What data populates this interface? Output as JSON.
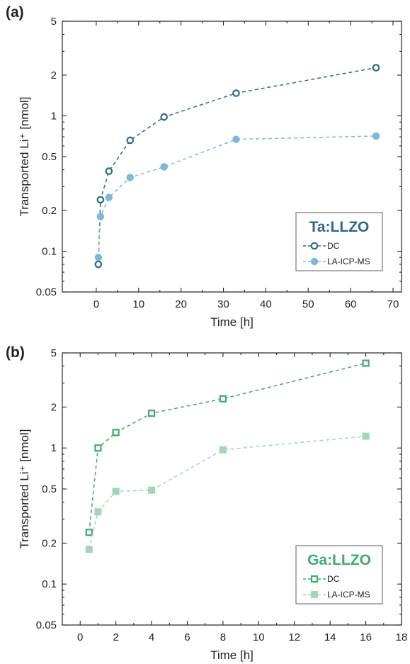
{
  "chart_data": [
    {
      "type": "scatter",
      "panel_label": "(a)",
      "xlabel": "Time [h]",
      "ylabel": "Transported Li⁺ [nmol]",
      "xlim": [
        -8,
        72
      ],
      "ylim": [
        0.05,
        5
      ],
      "yscale": "log",
      "x_ticks": [
        0,
        10,
        20,
        30,
        40,
        50,
        60,
        70
      ],
      "y_ticks": [
        0.05,
        0.1,
        0.2,
        0.5,
        1,
        2,
        5
      ],
      "legend_title": "Ta:LLZO",
      "legend_title_color": "#2e6a8a",
      "legend_placement": "lower-right",
      "series": [
        {
          "name": "DC",
          "color": "#2e6a8a",
          "marker": "open-circle",
          "x": [
            0.5,
            1,
            3,
            8,
            16,
            33,
            66
          ],
          "y": [
            0.08,
            0.24,
            0.39,
            0.66,
            0.98,
            1.47,
            2.27
          ]
        },
        {
          "name": "LA-ICP-MS",
          "color": "#7ab8dd",
          "marker": "filled-circle",
          "x": [
            0.5,
            1,
            3,
            8,
            16,
            33,
            66
          ],
          "y": [
            0.09,
            0.18,
            0.25,
            0.35,
            0.42,
            0.67,
            0.71
          ]
        }
      ]
    },
    {
      "type": "scatter",
      "panel_label": "(b)",
      "xlabel": "Time [h]",
      "ylabel": "Transported Li⁺ [nmol]",
      "xlim": [
        -1,
        18
      ],
      "ylim": [
        0.05,
        5
      ],
      "yscale": "log",
      "x_ticks": [
        0,
        2,
        4,
        6,
        8,
        10,
        12,
        14,
        16,
        18
      ],
      "y_ticks": [
        0.05,
        0.1,
        0.2,
        0.5,
        1,
        2,
        5
      ],
      "legend_title": "Ga:LLZO",
      "legend_title_color": "#3aae6a",
      "legend_placement": "lower-right",
      "series": [
        {
          "name": "DC",
          "color": "#3aae6a",
          "marker": "open-square",
          "x": [
            0.5,
            1,
            2,
            4,
            8,
            16
          ],
          "y": [
            0.24,
            1.0,
            1.3,
            1.8,
            2.3,
            4.2
          ]
        },
        {
          "name": "LA-ICP-MS",
          "color": "#9fd8b4",
          "marker": "filled-square",
          "x": [
            0.5,
            1,
            2,
            4,
            8,
            16
          ],
          "y": [
            0.18,
            0.34,
            0.48,
            0.49,
            0.97,
            1.22
          ]
        }
      ]
    }
  ]
}
